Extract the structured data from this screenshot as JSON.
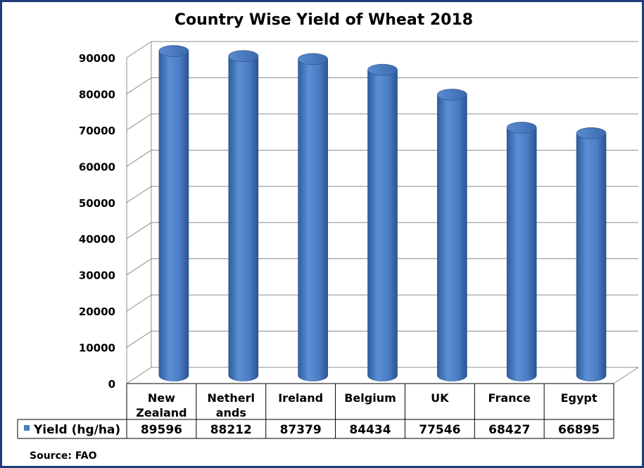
{
  "chart_data": {
    "type": "bar",
    "title": "Country Wise Yield of Wheat 2018",
    "categories": [
      [
        "New",
        "Zealand"
      ],
      [
        "Netherl",
        "ands"
      ],
      [
        "Ireland"
      ],
      [
        "Belgium"
      ],
      [
        "UK"
      ],
      [
        "France"
      ],
      [
        "Egypt"
      ]
    ],
    "series": [
      {
        "name": "Yield (hg/ha)",
        "values": [
          89596,
          88212,
          87379,
          84434,
          77546,
          68427,
          66895
        ],
        "color": "#4a7cc4"
      }
    ],
    "y_ticks": [
      "0",
      "10000",
      "20000",
      "30000",
      "40000",
      "50000",
      "60000",
      "70000",
      "80000",
      "90000"
    ],
    "ylim": [
      0,
      90000
    ],
    "grid": true,
    "legend": "data-table-left",
    "data_table": true,
    "source": "Source: FAO",
    "colors": {
      "frame": "#1f3d7a",
      "bar": "#4a7cc4",
      "grid": "#8c8c8c"
    }
  }
}
